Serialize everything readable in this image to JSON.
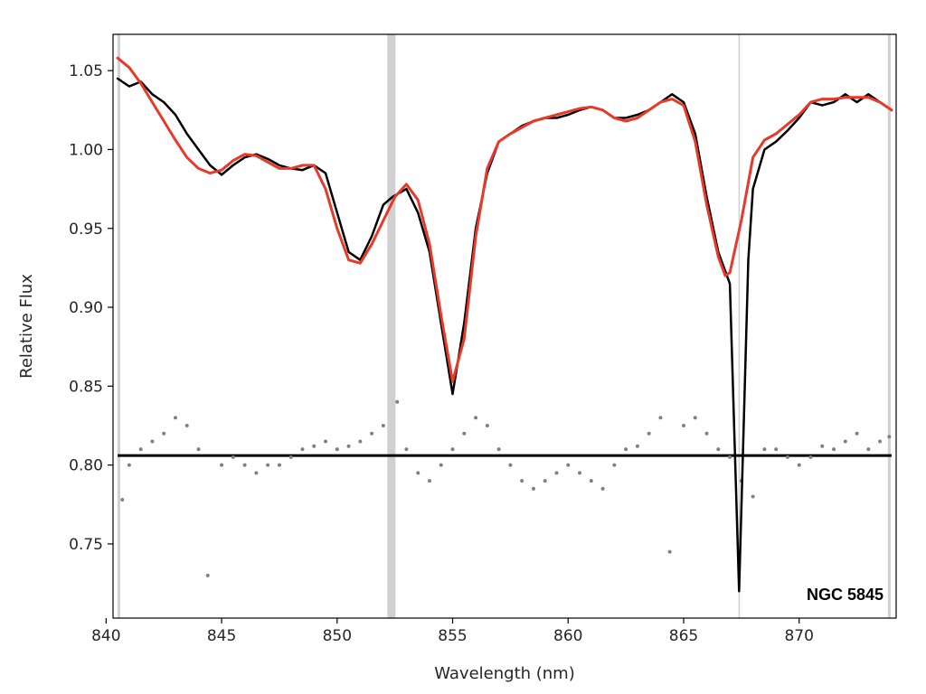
{
  "chart_data": {
    "type": "line",
    "title": "",
    "xlabel": "Wavelength (nm)",
    "ylabel": "Relative Flux",
    "xlim": [
      840.3,
      874.2
    ],
    "ylim": [
      0.703,
      1.073
    ],
    "x_ticks": [
      840,
      845,
      850,
      855,
      860,
      865,
      870
    ],
    "y_ticks": [
      0.75,
      0.8,
      0.85,
      0.9,
      0.95,
      1.0,
      1.05
    ],
    "grid": false,
    "legend": "none",
    "annotation": "NGC 5845",
    "masked_regions": [
      {
        "x": 840.55,
        "width": 0.12
      },
      {
        "x": 852.35,
        "width": 0.35
      },
      {
        "x": 867.4,
        "width": 0.05
      },
      {
        "x": 873.9,
        "width": 0.12
      }
    ],
    "residual_baseline": 0.806,
    "colors": {
      "observed": "#000000",
      "model": "#e8392b",
      "residuals": "#808080",
      "mask": "#d0d0d0",
      "axes": "#000000"
    },
    "series": [
      {
        "role": "observed",
        "style": "line",
        "x": [
          840.5,
          841.0,
          841.5,
          842.0,
          842.5,
          843.0,
          843.5,
          844.0,
          844.5,
          845.0,
          845.5,
          846.0,
          846.5,
          847.0,
          847.5,
          848.0,
          848.5,
          849.0,
          849.5,
          850.0,
          850.5,
          851.0,
          851.5,
          852.0,
          852.4,
          853.0,
          853.5,
          854.0,
          854.5,
          855.0,
          855.5,
          856.0,
          856.5,
          857.0,
          857.5,
          858.0,
          858.5,
          859.0,
          859.5,
          860.0,
          860.5,
          861.0,
          861.5,
          862.0,
          862.5,
          863.0,
          863.5,
          864.0,
          864.5,
          865.0,
          865.5,
          866.0,
          866.5,
          867.0,
          867.4,
          867.8,
          868.0,
          868.5,
          869.0,
          869.5,
          870.0,
          870.5,
          871.0,
          871.5,
          872.0,
          872.5,
          873.0,
          873.5,
          874.0
        ],
        "y": [
          1.045,
          1.04,
          1.043,
          1.035,
          1.03,
          1.022,
          1.01,
          1.0,
          0.99,
          0.984,
          0.99,
          0.995,
          0.997,
          0.994,
          0.99,
          0.988,
          0.987,
          0.99,
          0.985,
          0.96,
          0.935,
          0.93,
          0.945,
          0.965,
          0.97,
          0.975,
          0.96,
          0.935,
          0.89,
          0.845,
          0.89,
          0.95,
          0.985,
          1.005,
          1.01,
          1.015,
          1.018,
          1.02,
          1.02,
          1.022,
          1.025,
          1.027,
          1.025,
          1.02,
          1.02,
          1.022,
          1.025,
          1.03,
          1.035,
          1.03,
          1.01,
          0.97,
          0.935,
          0.915,
          0.72,
          0.93,
          0.975,
          1.0,
          1.005,
          1.012,
          1.02,
          1.03,
          1.028,
          1.03,
          1.035,
          1.03,
          1.035,
          1.03,
          1.025
        ]
      },
      {
        "role": "model",
        "style": "line",
        "x": [
          840.5,
          841.0,
          841.5,
          842.0,
          842.5,
          843.0,
          843.5,
          844.0,
          844.5,
          845.0,
          845.5,
          846.0,
          846.5,
          847.0,
          847.5,
          848.0,
          848.5,
          849.0,
          849.5,
          850.0,
          850.5,
          851.0,
          851.5,
          852.0,
          852.5,
          853.0,
          853.5,
          854.0,
          854.5,
          855.0,
          855.5,
          856.0,
          856.5,
          857.0,
          857.5,
          858.0,
          858.5,
          859.0,
          859.5,
          860.0,
          860.5,
          861.0,
          861.5,
          862.0,
          862.5,
          863.0,
          863.5,
          864.0,
          864.5,
          865.0,
          865.5,
          866.0,
          866.5,
          866.8,
          867.0,
          867.5,
          868.0,
          868.5,
          869.0,
          869.5,
          870.0,
          870.5,
          871.0,
          871.5,
          872.0,
          872.5,
          873.0,
          873.5,
          874.0
        ],
        "y": [
          1.058,
          1.052,
          1.042,
          1.03,
          1.018,
          1.006,
          0.995,
          0.988,
          0.985,
          0.987,
          0.993,
          0.997,
          0.996,
          0.992,
          0.988,
          0.988,
          0.99,
          0.99,
          0.975,
          0.95,
          0.93,
          0.928,
          0.94,
          0.955,
          0.97,
          0.978,
          0.968,
          0.94,
          0.895,
          0.853,
          0.88,
          0.945,
          0.988,
          1.005,
          1.01,
          1.014,
          1.018,
          1.02,
          1.022,
          1.024,
          1.026,
          1.027,
          1.025,
          1.02,
          1.018,
          1.02,
          1.025,
          1.03,
          1.032,
          1.028,
          1.005,
          0.965,
          0.932,
          0.92,
          0.922,
          0.955,
          0.995,
          1.006,
          1.01,
          1.016,
          1.022,
          1.03,
          1.032,
          1.032,
          1.033,
          1.033,
          1.033,
          1.03,
          1.025
        ]
      },
      {
        "role": "residuals",
        "style": "scatter",
        "x": [
          840.7,
          841.0,
          841.5,
          842.0,
          842.5,
          843.0,
          843.5,
          844.0,
          844.4,
          845.0,
          845.5,
          846.0,
          846.5,
          847.0,
          847.5,
          848.0,
          848.5,
          849.0,
          849.5,
          850.0,
          850.5,
          851.0,
          851.5,
          852.0,
          852.6,
          853.0,
          853.5,
          854.0,
          854.5,
          855.0,
          855.5,
          856.0,
          856.5,
          857.0,
          857.5,
          858.0,
          858.5,
          859.0,
          859.5,
          860.0,
          860.5,
          861.0,
          861.5,
          862.0,
          862.5,
          863.0,
          863.5,
          864.0,
          864.4,
          865.0,
          865.5,
          866.0,
          866.5,
          867.0,
          867.5,
          868.0,
          868.5,
          869.0,
          869.5,
          870.0,
          870.5,
          871.0,
          871.5,
          872.0,
          872.5,
          873.0,
          873.5,
          873.9
        ],
        "y": [
          0.778,
          0.8,
          0.81,
          0.815,
          0.82,
          0.83,
          0.825,
          0.81,
          0.73,
          0.8,
          0.805,
          0.8,
          0.795,
          0.8,
          0.8,
          0.805,
          0.81,
          0.812,
          0.815,
          0.81,
          0.812,
          0.815,
          0.82,
          0.825,
          0.84,
          0.81,
          0.795,
          0.79,
          0.8,
          0.81,
          0.82,
          0.83,
          0.825,
          0.81,
          0.8,
          0.79,
          0.785,
          0.79,
          0.795,
          0.8,
          0.795,
          0.79,
          0.785,
          0.8,
          0.81,
          0.812,
          0.82,
          0.83,
          0.745,
          0.825,
          0.83,
          0.82,
          0.81,
          0.805,
          0.79,
          0.78,
          0.81,
          0.81,
          0.805,
          0.8,
          0.805,
          0.812,
          0.81,
          0.815,
          0.82,
          0.81,
          0.815,
          0.818
        ]
      }
    ]
  }
}
